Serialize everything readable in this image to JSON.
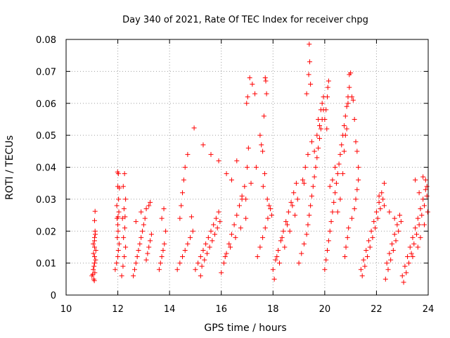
{
  "chart_data": {
    "type": "scatter",
    "title": "Day 340 of 2021, Rate Of TEC Index for receiver chpg",
    "xlabel": "GPS time / hours",
    "ylabel": "ROTI / TECUs",
    "xlim": [
      10,
      24
    ],
    "ylim": [
      0,
      0.08
    ],
    "xticks": [
      "10",
      "12",
      "14",
      "16",
      "18",
      "20",
      "22",
      "24"
    ],
    "yticks": [
      "0",
      "0.01",
      "0.02",
      "0.03",
      "0.04",
      "0.05",
      "0.06",
      "0.07",
      "0.08"
    ],
    "grid": true,
    "marker": "+",
    "color": "#ff0000",
    "series": [
      {
        "name": "ROTI",
        "x": [
          11.0,
          11.05,
          11.1,
          11.1,
          11.15,
          11.05,
          11.1,
          11.12,
          11.08,
          11.14,
          11.06,
          11.1,
          11.1,
          11.13,
          11.07,
          11.11,
          11.09,
          11.03,
          11.1,
          11.12,
          11.9,
          11.95,
          12.0,
          12.02,
          12.05,
          11.98,
          12.01,
          12.0,
          11.97,
          12.04,
          11.96,
          12.03,
          12.0,
          12.02,
          11.99,
          12.06,
          12.01,
          12.15,
          12.2,
          12.25,
          12.3,
          12.22,
          12.27,
          12.18,
          12.24,
          12.3,
          12.21,
          12.26,
          12.28,
          12.6,
          12.65,
          12.7,
          12.75,
          12.8,
          12.85,
          12.9,
          12.95,
          13.0,
          13.05,
          13.1,
          13.15,
          13.2,
          13.25,
          13.3,
          12.7,
          12.9,
          13.1,
          13.2,
          13.25,
          13.6,
          13.65,
          13.7,
          13.75,
          13.8,
          13.85,
          13.7,
          13.78,
          14.3,
          14.4,
          14.5,
          14.6,
          14.7,
          14.8,
          14.9,
          14.4,
          14.45,
          14.5,
          14.55,
          14.6,
          14.7,
          14.85,
          14.95,
          15.0,
          15.1,
          15.2,
          15.3,
          15.4,
          15.5,
          15.6,
          15.7,
          15.8,
          15.9,
          15.2,
          15.25,
          15.35,
          15.45,
          15.55,
          15.65,
          15.75,
          15.85,
          15.95,
          15.3,
          15.6,
          15.9,
          16.0,
          16.1,
          16.2,
          16.3,
          16.4,
          16.5,
          16.6,
          16.7,
          16.8,
          16.9,
          16.15,
          16.35,
          16.55,
          16.75,
          16.95,
          16.2,
          16.4,
          16.6,
          16.8,
          16.95,
          17.0,
          17.05,
          16.98,
          17.02,
          17.1,
          17.2,
          17.3,
          17.4,
          17.5,
          17.6,
          17.7,
          17.8,
          17.9,
          17.15,
          17.35,
          17.5,
          17.55,
          17.6,
          17.65,
          17.7,
          17.72,
          17.75,
          17.68,
          17.62,
          17.78,
          17.85,
          17.95,
          18.0,
          18.1,
          18.2,
          18.3,
          18.4,
          18.5,
          18.6,
          18.7,
          18.8,
          18.9,
          18.05,
          18.25,
          18.45,
          18.65,
          18.85,
          18.95,
          18.15,
          18.35,
          18.55,
          18.75,
          19.0,
          19.1,
          19.2,
          19.3,
          19.35,
          19.4,
          19.45,
          19.5,
          19.55,
          19.6,
          19.65,
          19.7,
          19.75,
          19.8,
          19.85,
          19.9,
          19.95,
          19.4,
          19.42,
          19.38,
          19.45,
          19.3,
          19.5,
          19.2,
          19.6,
          19.7,
          19.75,
          19.8,
          19.85,
          19.9,
          19.95,
          19.35,
          19.25,
          19.15,
          20.0,
          20.05,
          20.1,
          20.15,
          20.2,
          20.25,
          20.3,
          20.35,
          20.4,
          20.45,
          20.5,
          20.55,
          20.6,
          20.65,
          20.7,
          20.75,
          20.8,
          20.85,
          20.9,
          20.95,
          20.0,
          20.05,
          20.1,
          20.12,
          20.15,
          20.08,
          20.2,
          20.3,
          20.4,
          20.5,
          20.6,
          20.7,
          20.75,
          20.8,
          20.85,
          20.9,
          20.95,
          21.0,
          21.05,
          21.1,
          21.15,
          21.2,
          21.25,
          21.3,
          20.78,
          20.82,
          20.88,
          20.92,
          21.05,
          21.15,
          21.2,
          21.25,
          21.3,
          21.4,
          21.5,
          21.6,
          21.7,
          21.8,
          21.9,
          22.0,
          22.1,
          22.2,
          22.3,
          22.4,
          22.5,
          22.6,
          22.7,
          22.8,
          22.9,
          21.45,
          21.55,
          21.65,
          21.75,
          21.85,
          21.95,
          22.05,
          22.15,
          22.25,
          22.35,
          22.45,
          22.55,
          22.65,
          22.75,
          22.85,
          22.95,
          22.1,
          22.3,
          22.5,
          22.7,
          23.0,
          23.1,
          23.2,
          23.3,
          23.4,
          23.5,
          23.6,
          23.7,
          23.8,
          23.9,
          23.05,
          23.15,
          23.25,
          23.35,
          23.45,
          23.55,
          23.65,
          23.75,
          23.85,
          23.95,
          23.5,
          23.65,
          23.8,
          23.9,
          23.95,
          23.98,
          23.85,
          23.7,
          23.6,
          23.4
        ],
        "y": [
          0.006,
          0.008,
          0.01,
          0.012,
          0.014,
          0.016,
          0.018,
          0.02,
          0.009,
          0.011,
          0.013,
          0.015,
          0.017,
          0.019,
          0.005,
          0.007,
          0.0045,
          0.0065,
          0.0233,
          0.0262,
          0.008,
          0.01,
          0.012,
          0.014,
          0.016,
          0.018,
          0.02,
          0.022,
          0.024,
          0.026,
          0.028,
          0.03,
          0.034,
          0.038,
          0.0385,
          0.0335,
          0.0245,
          0.006,
          0.009,
          0.012,
          0.015,
          0.018,
          0.021,
          0.024,
          0.027,
          0.03,
          0.034,
          0.038,
          0.0245,
          0.006,
          0.008,
          0.01,
          0.012,
          0.014,
          0.016,
          0.018,
          0.02,
          0.022,
          0.024,
          0.011,
          0.013,
          0.015,
          0.017,
          0.019,
          0.023,
          0.026,
          0.027,
          0.028,
          0.029,
          0.008,
          0.01,
          0.012,
          0.014,
          0.016,
          0.02,
          0.024,
          0.027,
          0.008,
          0.01,
          0.012,
          0.014,
          0.016,
          0.018,
          0.02,
          0.024,
          0.028,
          0.032,
          0.036,
          0.04,
          0.044,
          0.0245,
          0.0523,
          0.008,
          0.01,
          0.012,
          0.014,
          0.016,
          0.018,
          0.02,
          0.022,
          0.024,
          0.026,
          0.006,
          0.009,
          0.011,
          0.013,
          0.015,
          0.017,
          0.019,
          0.021,
          0.023,
          0.047,
          0.044,
          0.042,
          0.007,
          0.01,
          0.013,
          0.016,
          0.019,
          0.022,
          0.025,
          0.028,
          0.031,
          0.034,
          0.012,
          0.015,
          0.018,
          0.021,
          0.024,
          0.038,
          0.036,
          0.042,
          0.03,
          0.03,
          0.04,
          0.046,
          0.06,
          0.062,
          0.068,
          0.066,
          0.063,
          0.012,
          0.015,
          0.018,
          0.021,
          0.024,
          0.027,
          0.035,
          0.04,
          0.05,
          0.047,
          0.045,
          0.056,
          0.068,
          0.067,
          0.063,
          0.038,
          0.034,
          0.03,
          0.028,
          0.025,
          0.008,
          0.011,
          0.014,
          0.017,
          0.02,
          0.023,
          0.026,
          0.029,
          0.032,
          0.035,
          0.005,
          0.01,
          0.015,
          0.02,
          0.025,
          0.03,
          0.012,
          0.018,
          0.022,
          0.028,
          0.01,
          0.013,
          0.016,
          0.019,
          0.022,
          0.025,
          0.028,
          0.031,
          0.034,
          0.037,
          0.04,
          0.043,
          0.046,
          0.049,
          0.052,
          0.055,
          0.058,
          0.0785,
          0.073,
          0.069,
          0.066,
          0.063,
          0.048,
          0.035,
          0.045,
          0.05,
          0.055,
          0.053,
          0.058,
          0.06,
          0.062,
          0.044,
          0.04,
          0.036,
          0.008,
          0.011,
          0.014,
          0.017,
          0.02,
          0.023,
          0.026,
          0.029,
          0.032,
          0.035,
          0.038,
          0.041,
          0.044,
          0.047,
          0.05,
          0.053,
          0.056,
          0.059,
          0.062,
          0.065,
          0.055,
          0.058,
          0.062,
          0.065,
          0.067,
          0.052,
          0.034,
          0.036,
          0.04,
          0.026,
          0.03,
          0.038,
          0.045,
          0.05,
          0.052,
          0.06,
          0.069,
          0.0695,
          0.062,
          0.061,
          0.055,
          0.048,
          0.045,
          0.04,
          0.012,
          0.015,
          0.018,
          0.021,
          0.024,
          0.027,
          0.03,
          0.033,
          0.036,
          0.008,
          0.011,
          0.014,
          0.017,
          0.02,
          0.023,
          0.026,
          0.029,
          0.032,
          0.035,
          0.01,
          0.013,
          0.016,
          0.019,
          0.022,
          0.025,
          0.006,
          0.009,
          0.012,
          0.015,
          0.018,
          0.021,
          0.024,
          0.027,
          0.03,
          0.005,
          0.008,
          0.011,
          0.014,
          0.017,
          0.02,
          0.023,
          0.031,
          0.028,
          0.026,
          0.024,
          0.006,
          0.009,
          0.012,
          0.015,
          0.018,
          0.021,
          0.024,
          0.027,
          0.03,
          0.033,
          0.004,
          0.007,
          0.01,
          0.013,
          0.016,
          0.019,
          0.022,
          0.025,
          0.028,
          0.031,
          0.036,
          0.032,
          0.037,
          0.036,
          0.034,
          0.026,
          0.022,
          0.018,
          0.015,
          0.012
        ]
      }
    ]
  }
}
